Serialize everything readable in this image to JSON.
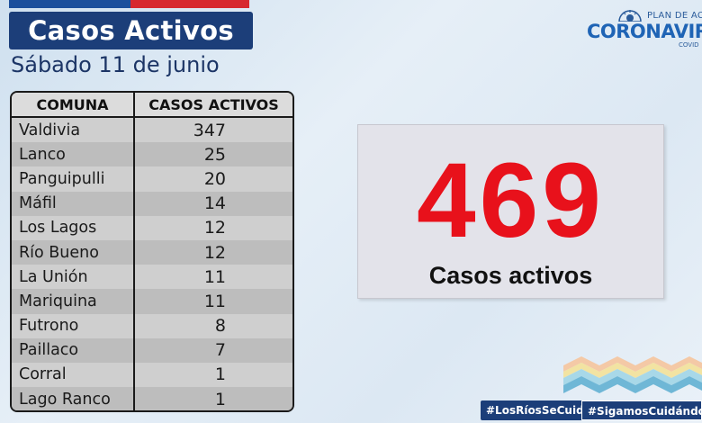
{
  "header": {
    "title": "Casos Activos",
    "date": "Sábado 11 de junio"
  },
  "logo": {
    "line1": "PLAN DE ACCIO",
    "line2": "CORONAVIRU",
    "line3": "COVID"
  },
  "table": {
    "headers": [
      "COMUNA",
      "CASOS ACTIVOS"
    ],
    "rows": [
      {
        "comuna": "Valdivia",
        "casos": "347"
      },
      {
        "comuna": "Lanco",
        "casos": "25"
      },
      {
        "comuna": "Panguipulli",
        "casos": "20"
      },
      {
        "comuna": "Máfil",
        "casos": "14"
      },
      {
        "comuna": "Los Lagos",
        "casos": "12"
      },
      {
        "comuna": "Río Bueno",
        "casos": "12"
      },
      {
        "comuna": "La Unión",
        "casos": "11"
      },
      {
        "comuna": "Mariquina",
        "casos": "11"
      },
      {
        "comuna": "Futrono",
        "casos": "8"
      },
      {
        "comuna": "Paillaco",
        "casos": "7"
      },
      {
        "comuna": "Corral",
        "casos": "1"
      },
      {
        "comuna": "Lago Ranco",
        "casos": "1"
      }
    ]
  },
  "summary": {
    "total": "469",
    "label": "Casos activos"
  },
  "hashtags": {
    "tag1": "#LosRíosSeCuida",
    "tag2": "#SigamosCuidándon"
  },
  "colors": {
    "navy": "#1c3e79",
    "red": "#e8111b"
  }
}
